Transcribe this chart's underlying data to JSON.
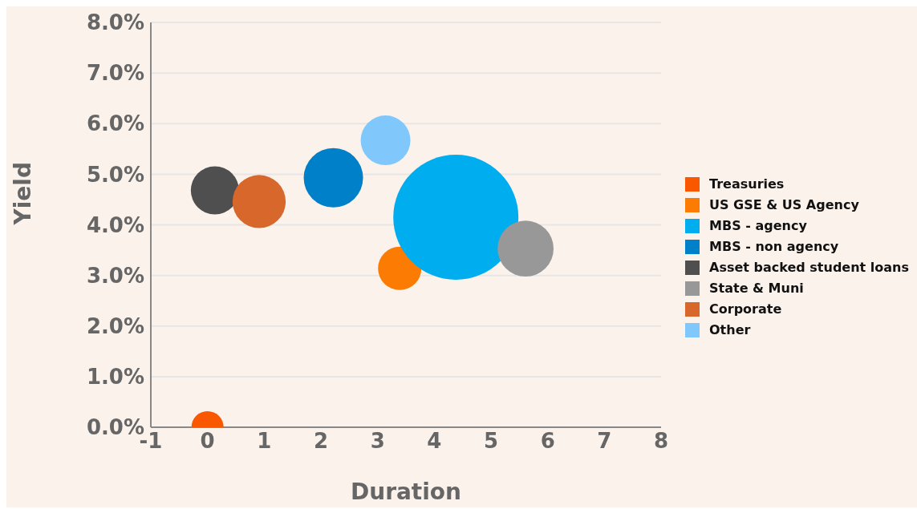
{
  "chart_data": {
    "type": "bubble",
    "xlabel": "Duration",
    "ylabel": "Yield",
    "xlim": [
      -1,
      8
    ],
    "xticks": [
      -1,
      0,
      1,
      2,
      3,
      4,
      5,
      6,
      7,
      8
    ],
    "ylim": [
      0,
      8
    ],
    "yticks": [
      {
        "value": 0,
        "label": "0.0%"
      },
      {
        "value": 1,
        "label": "1.0%"
      },
      {
        "value": 2,
        "label": "2.0%"
      },
      {
        "value": 3,
        "label": "3.0%"
      },
      {
        "value": 4,
        "label": "4.0%"
      },
      {
        "value": 5,
        "label": "5.0%"
      },
      {
        "value": 6,
        "label": "6.0%"
      },
      {
        "value": 7,
        "label": "7.0%"
      },
      {
        "value": 8,
        "label": "8.0%"
      }
    ],
    "grid": "y",
    "legend": "right",
    "series": [
      {
        "name": "Treasuries",
        "color": "#f95700",
        "x": [
          0
        ],
        "values": [
          0
        ],
        "sizes": [
          0.066
        ]
      },
      {
        "name": "US GSE & US Agency",
        "color": "#fb7b03",
        "x": [
          3.39
        ],
        "values": [
          3.14
        ],
        "sizes": [
          0.12
        ]
      },
      {
        "name": "MBS - agency",
        "color": "#00aeef",
        "x": [
          4.38
        ],
        "values": [
          4.15
        ],
        "sizes": [
          1
        ]
      },
      {
        "name": "MBS - non agency",
        "color": "#0080c8",
        "x": [
          2.22
        ],
        "values": [
          4.93
        ],
        "sizes": [
          0.225
        ]
      },
      {
        "name": "Asset backed student loans",
        "color": "#4f4f4f",
        "x": [
          0.13
        ],
        "values": [
          4.68
        ],
        "sizes": [
          0.148
        ]
      },
      {
        "name": "State & Muni",
        "color": "#989898",
        "x": [
          5.61
        ],
        "values": [
          3.53
        ],
        "sizes": [
          0.2
        ]
      },
      {
        "name": "Corporate",
        "color": "#d8672b",
        "x": [
          0.91
        ],
        "values": [
          4.46
        ],
        "sizes": [
          0.18
        ]
      },
      {
        "name": "Other",
        "color": "#80c8fb",
        "x": [
          3.14
        ],
        "values": [
          5.67
        ],
        "sizes": [
          0.158
        ]
      }
    ]
  }
}
